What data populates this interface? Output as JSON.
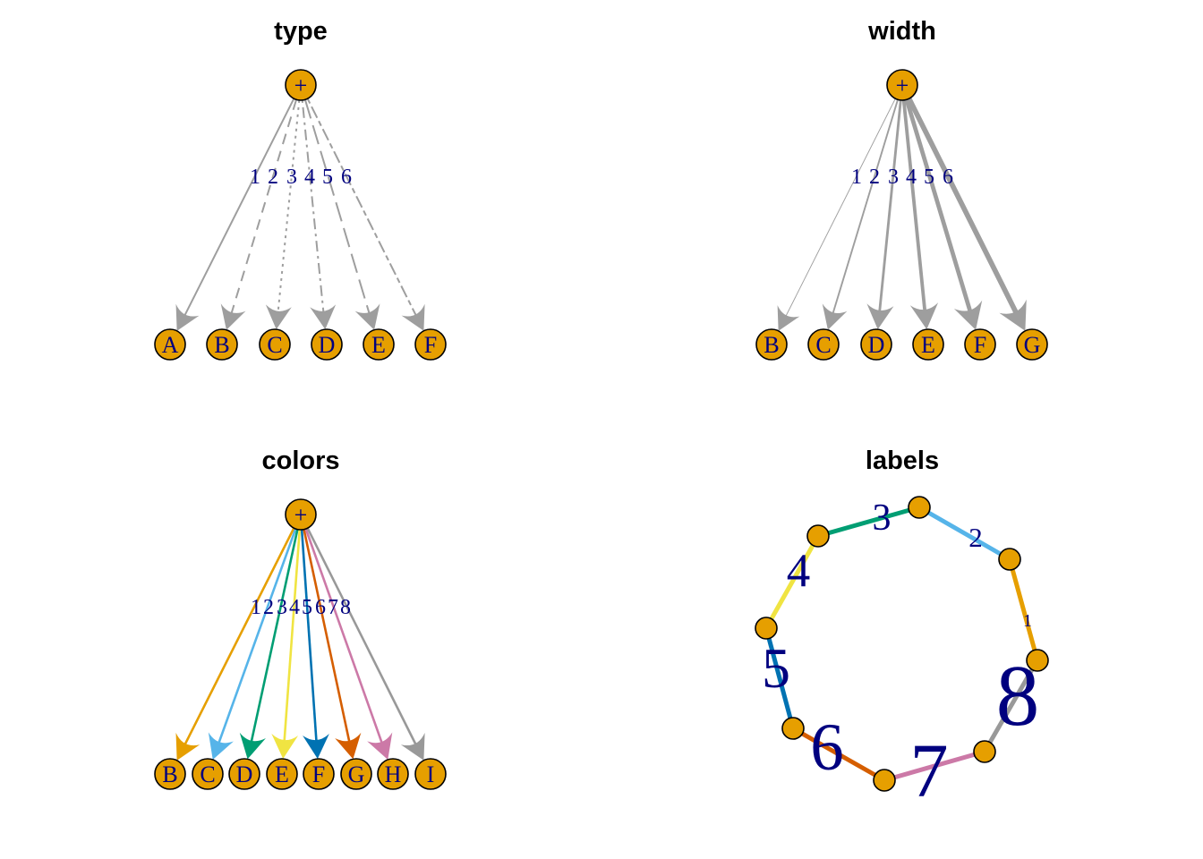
{
  "panels": [
    {
      "title": "type",
      "root_label": "+",
      "nodes": [
        "A",
        "B",
        "C",
        "D",
        "E",
        "F"
      ],
      "edge_labels": [
        "1",
        "2",
        "3",
        "4",
        "5",
        "6"
      ],
      "edge_line_types": [
        "solid",
        "dashed",
        "dotted",
        "dotdash",
        "longdash",
        "twodash"
      ],
      "edge_color": "#9e9e9e"
    },
    {
      "title": "width",
      "root_label": "+",
      "nodes": [
        "B",
        "C",
        "D",
        "E",
        "F",
        "G"
      ],
      "edge_labels": [
        "1",
        "2",
        "3",
        "4",
        "5",
        "6"
      ],
      "edge_widths": [
        1,
        2,
        3,
        4,
        5,
        6
      ],
      "edge_color": "#9e9e9e"
    },
    {
      "title": "colors",
      "root_label": "+",
      "nodes": [
        "B",
        "C",
        "D",
        "E",
        "F",
        "G",
        "H",
        "I"
      ],
      "edge_labels": [
        "1",
        "2",
        "3",
        "4",
        "5",
        "6",
        "7",
        "8"
      ],
      "edge_colors": [
        "#e69f00",
        "#56b4e9",
        "#009e73",
        "#f0e442",
        "#0072b2",
        "#d55e00",
        "#cc79a7",
        "#999999"
      ]
    },
    {
      "title": "labels",
      "ring_edge_labels": [
        "1",
        "2",
        "3",
        "4",
        "5",
        "6",
        "7",
        "8"
      ],
      "ring_edge_label_sizes": [
        1,
        2,
        3,
        4,
        5,
        6,
        7,
        8
      ],
      "ring_edge_colors": [
        "#e69f00",
        "#56b4e9",
        "#009e73",
        "#f0e442",
        "#0072b2",
        "#d55e00",
        "#cc79a7",
        "#999999"
      ]
    }
  ],
  "colors": {
    "node_fill": "#e69f00",
    "node_stroke": "#000000",
    "label_color": "#00007f",
    "background": "#ffffff"
  }
}
